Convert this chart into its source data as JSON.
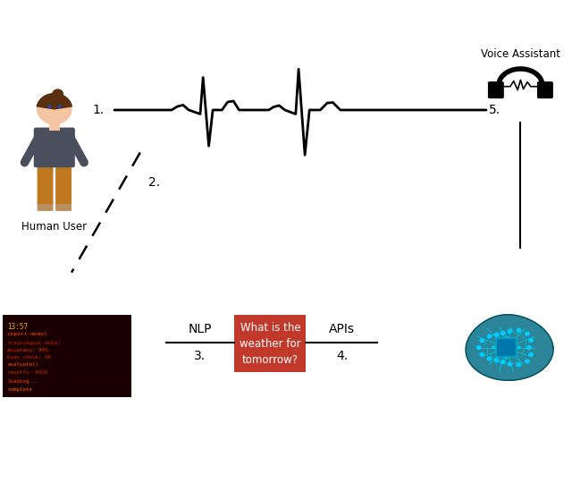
{
  "background_color": "#ffffff",
  "fig_width": 6.4,
  "fig_height": 5.59,
  "label_1": "1.",
  "label_2": "2.",
  "label_3": "3.",
  "label_4": "4.",
  "label_5": "5.",
  "label_human": "Human User",
  "label_va": "Voice Assistant",
  "label_nlp": "NLP",
  "label_apis": "APIs",
  "label_query": "What is the\nweather for\ntomorrow?",
  "query_box_color": "#c0392b",
  "query_text_color": "#ffffff",
  "line_color": "#000000",
  "waveform_color": "#000000",
  "skin_color": "#f5c5a3",
  "hair_color": "#5a3010",
  "shirt_color": "#4a4f5e",
  "pants_color": "#c07820",
  "shoe_color": "#b89060",
  "screen_color": "#1a0000",
  "brain_fill": "#1a7a90",
  "brain_edge": "#004455",
  "brain_circuit": "#00ccdd",
  "brain_dot": "#00ccff",
  "brain_chip": "#0077aa",
  "brain_chip_edge": "#00aacc"
}
